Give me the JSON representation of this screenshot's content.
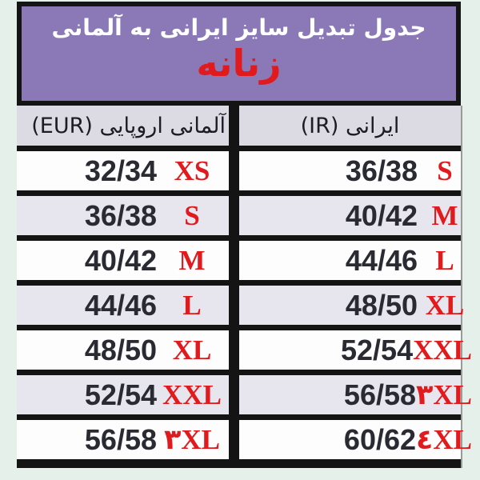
{
  "colors": {
    "page_background": "#e6f0ea",
    "banner_background": "#8a79b6",
    "banner_border": "#141414",
    "title_text": "#ffffff",
    "accent_red": "#e01a1d",
    "header_row_background": "#dcdae3",
    "row_alt_background": "#e7e5ee",
    "row_background": "#fdfdfe",
    "number_text": "#2a2a33"
  },
  "header": {
    "title": "جدول تبدیل سایز ایرانی به آلمانی",
    "subtitle": "زنانه"
  },
  "table": {
    "columns": [
      {
        "key": "eur",
        "label": "آلمانی اروپایی (EUR)"
      },
      {
        "key": "ir",
        "label": "ایرانی (IR)"
      }
    ],
    "rows": [
      {
        "eur_num": "32/34",
        "eur_size": "XS",
        "ir_num": "36/38",
        "ir_size": "S"
      },
      {
        "eur_num": "36/38",
        "eur_size": "S",
        "ir_num": "40/42",
        "ir_size": "M"
      },
      {
        "eur_num": "40/42",
        "eur_size": "M",
        "ir_num": "44/46",
        "ir_size": "L"
      },
      {
        "eur_num": "44/46",
        "eur_size": "L",
        "ir_num": "48/50",
        "ir_size": "XL"
      },
      {
        "eur_num": "48/50",
        "eur_size": "XL",
        "ir_num": "52/54",
        "ir_size": "XXL"
      },
      {
        "eur_num": "52/54",
        "eur_size": "XXL",
        "ir_num": "56/58",
        "ir_size": "۳XL"
      },
      {
        "eur_num": "56/58",
        "eur_size": "۳XL",
        "ir_num": "60/62",
        "ir_size": "٤XL"
      }
    ]
  }
}
